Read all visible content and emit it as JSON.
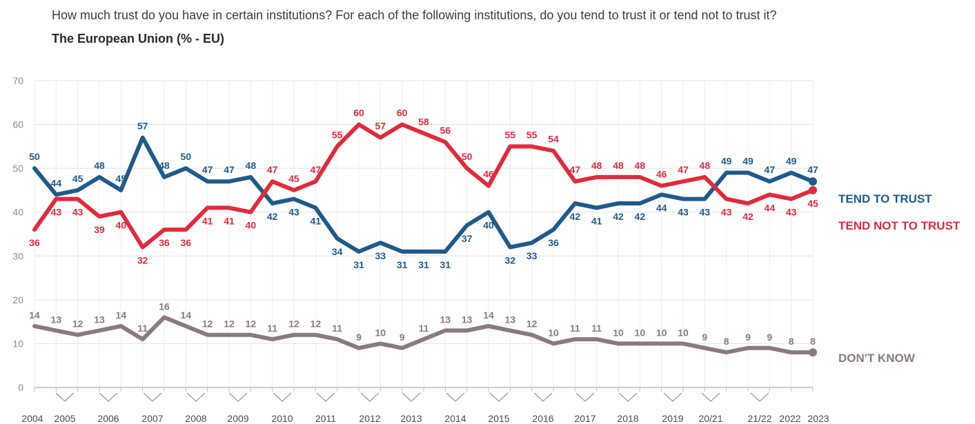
{
  "title": "How much trust do you have in certain institutions? For each of the following institutions, do you tend to trust it or tend not to trust it?",
  "subtitle": "The European Union (% - EU)",
  "chart_data": {
    "type": "line",
    "ylim": [
      0,
      70
    ],
    "yticks": [
      0,
      10,
      20,
      30,
      40,
      50,
      60,
      70
    ],
    "grid": true,
    "x_labels": [
      "2004",
      "2005",
      "2006",
      "2007",
      "2008",
      "2009",
      "2010",
      "2011",
      "2012",
      "2013",
      "2014",
      "2015",
      "2016",
      "2017",
      "2018",
      "2019",
      "20/21",
      "21/22",
      "2022",
      "2023"
    ],
    "series": [
      {
        "name": "TEND TO TRUST",
        "color": "#1f5a8a",
        "values": [
          50,
          44,
          45,
          48,
          45,
          57,
          48,
          50,
          47,
          47,
          48,
          42,
          43,
          41,
          34,
          31,
          33,
          31,
          31,
          31,
          37,
          40,
          32,
          33,
          36,
          42,
          41,
          42,
          42,
          44,
          43,
          43,
          49,
          49,
          47,
          49,
          47
        ]
      },
      {
        "name": "TEND NOT TO TRUST",
        "color": "#e02b3c",
        "values": [
          36,
          43,
          43,
          39,
          40,
          32,
          36,
          36,
          41,
          41,
          40,
          47,
          45,
          47,
          55,
          60,
          57,
          60,
          58,
          56,
          50,
          46,
          55,
          55,
          54,
          47,
          48,
          48,
          48,
          46,
          47,
          48,
          43,
          42,
          44,
          43,
          45
        ]
      },
      {
        "name": "DON'T KNOW",
        "color": "#8a7a7e",
        "values": [
          14,
          13,
          12,
          13,
          14,
          11,
          16,
          14,
          12,
          12,
          12,
          11,
          12,
          12,
          11,
          9,
          10,
          9,
          11,
          13,
          13,
          14,
          13,
          12,
          10,
          11,
          11,
          10,
          10,
          10,
          10,
          9,
          8,
          9,
          9,
          8,
          8
        ]
      }
    ]
  }
}
